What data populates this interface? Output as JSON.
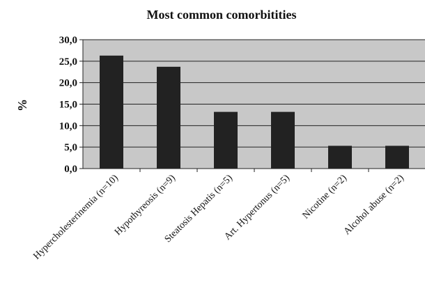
{
  "chart_data": {
    "type": "bar",
    "title": "Most common comorbitities",
    "xlabel": "",
    "ylabel": "%",
    "ylim": [
      0,
      30
    ],
    "yticks": [
      "0,0",
      "5,0",
      "10,0",
      "15,0",
      "20,0",
      "25,0",
      "30,0"
    ],
    "categories": [
      "Hypercholesterinemia (n=10)",
      "Hypothyreosis (n=9)",
      "Steatosis Hepatis (n=5)",
      "Art. Hypertonus (n=5)",
      "Nicotine (n=2)",
      "Alcohol abuse (n=2)"
    ],
    "values": [
      26.3,
      23.7,
      13.2,
      13.2,
      5.3,
      5.3
    ],
    "grid": true,
    "colors": {
      "plot_background": "#c8c8c8",
      "bar": "#222222",
      "grid": "#222222",
      "axis": "#222222"
    }
  }
}
